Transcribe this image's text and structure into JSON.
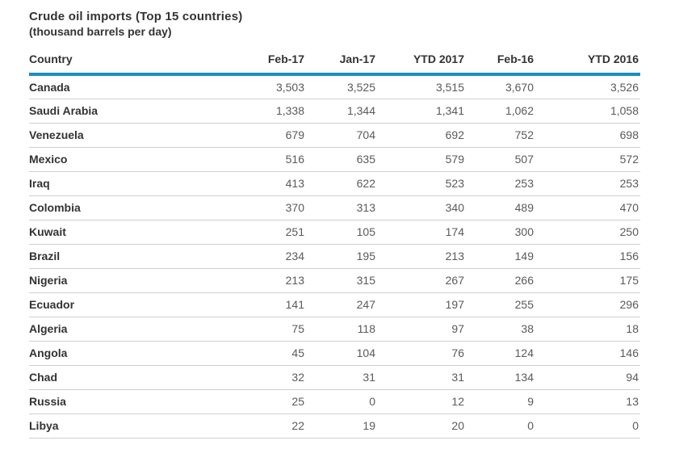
{
  "page": {
    "title": "Crude oil imports (Top 15 countries)",
    "subtitle": "(thousand barrels per day)"
  },
  "colors": {
    "header_rule": "#1c8dbf",
    "row_rule": "#cfcfcf",
    "heading_text": "#333333",
    "value_text": "#595a5c"
  },
  "chart_data": {
    "type": "table",
    "title": "Crude oil imports (Top 15 countries)",
    "subtitle": "(thousand barrels per day)",
    "units": "thousand barrels per day",
    "columns": [
      "Country",
      "Feb-17",
      "Jan-17",
      "YTD 2017",
      "Feb-16",
      "YTD 2016"
    ],
    "rows": [
      {
        "country": "Canada",
        "values": [
          "3,503",
          "3,525",
          "3,515",
          "3,670",
          "3,526"
        ]
      },
      {
        "country": "Saudi Arabia",
        "values": [
          "1,338",
          "1,344",
          "1,341",
          "1,062",
          "1,058"
        ]
      },
      {
        "country": "Venezuela",
        "values": [
          "679",
          "704",
          "692",
          "752",
          "698"
        ]
      },
      {
        "country": "Mexico",
        "values": [
          "516",
          "635",
          "579",
          "507",
          "572"
        ]
      },
      {
        "country": "Iraq",
        "values": [
          "413",
          "622",
          "523",
          "253",
          "253"
        ]
      },
      {
        "country": "Colombia",
        "values": [
          "370",
          "313",
          "340",
          "489",
          "470"
        ]
      },
      {
        "country": "Kuwait",
        "values": [
          "251",
          "105",
          "174",
          "300",
          "250"
        ]
      },
      {
        "country": "Brazil",
        "values": [
          "234",
          "195",
          "213",
          "149",
          "156"
        ]
      },
      {
        "country": "Nigeria",
        "values": [
          "213",
          "315",
          "267",
          "266",
          "175"
        ]
      },
      {
        "country": "Ecuador",
        "values": [
          "141",
          "247",
          "197",
          "255",
          "296"
        ]
      },
      {
        "country": "Algeria",
        "values": [
          "75",
          "118",
          "97",
          "38",
          "18"
        ]
      },
      {
        "country": "Angola",
        "values": [
          "45",
          "104",
          "76",
          "124",
          "146"
        ]
      },
      {
        "country": "Chad",
        "values": [
          "32",
          "31",
          "31",
          "134",
          "94"
        ]
      },
      {
        "country": "Russia",
        "values": [
          "25",
          "0",
          "12",
          "9",
          "13"
        ]
      },
      {
        "country": "Libya",
        "values": [
          "22",
          "19",
          "20",
          "0",
          "0"
        ]
      }
    ]
  }
}
